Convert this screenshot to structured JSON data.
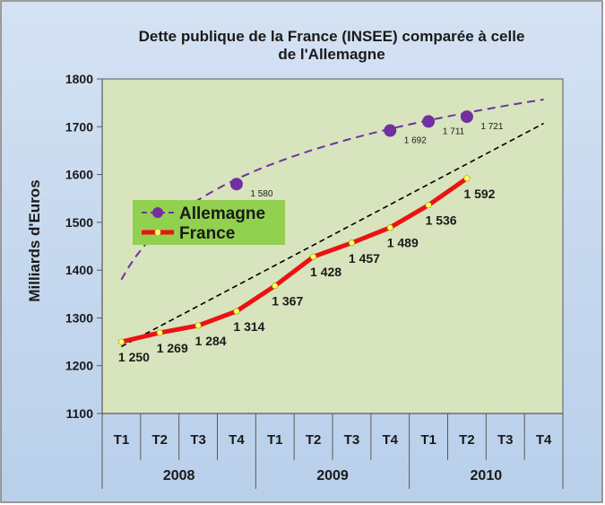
{
  "chart_data": {
    "type": "line",
    "title": "Dette publique de la France (INSEE) comparée à celle de l'Allemagne",
    "title_lines": [
      "Dette publique de la France (INSEE) comparée à celle",
      "de l'Allemagne"
    ],
    "ylabel": "Milliards d'Euros",
    "xlabel": "",
    "ylim": [
      1100,
      1800
    ],
    "yticks": [
      1100,
      1200,
      1300,
      1400,
      1500,
      1600,
      1700,
      1800
    ],
    "categories": [
      "T1",
      "T2",
      "T3",
      "T4",
      "T1",
      "T2",
      "T3",
      "T4",
      "T1",
      "T2",
      "T3",
      "T4"
    ],
    "years": [
      {
        "label": "2008",
        "quarters": 4
      },
      {
        "label": "2009",
        "quarters": 4
      },
      {
        "label": "2010",
        "quarters": 4
      }
    ],
    "series": [
      {
        "name": "France",
        "color": "#ee1111",
        "marker_color": "#ffff66",
        "values": [
          1250,
          1269,
          1284,
          1314,
          1367,
          1428,
          1457,
          1489,
          1536,
          1592,
          null,
          null
        ],
        "labels": [
          "1 250",
          "1 269",
          "1 284",
          "1 314",
          "1 367",
          "1 428",
          "1 457",
          "1 489",
          "1 536",
          "1 592",
          null,
          null
        ]
      },
      {
        "name": "Allemagne",
        "color": "#7030a0",
        "marker_color": "#7030a0",
        "values": [
          null,
          null,
          null,
          1580,
          null,
          null,
          null,
          1692,
          1711,
          1721,
          null,
          null
        ],
        "labels": [
          null,
          null,
          null,
          "1 580",
          null,
          null,
          null,
          "1 692",
          "1 711",
          "1 721",
          null,
          null
        ]
      }
    ],
    "trendlines": [
      {
        "for": "Allemagne",
        "style": "dashed",
        "color": "#7030a0",
        "curve": "logarithmic",
        "y_start": 1380,
        "y_end": 1757
      },
      {
        "for": "France",
        "style": "dashed",
        "color": "#000000",
        "curve": "linear",
        "y_start": 1240,
        "y_end": 1707
      }
    ],
    "legend": [
      {
        "label": "Allemagne",
        "series": "Allemagne"
      },
      {
        "label": "France",
        "series": "France"
      }
    ],
    "legend_position": "left-middle",
    "grid": false,
    "colors": {
      "chart_background": "#c5d8ef",
      "plot_background": "#d7e4bd",
      "legend_background": "#92d050",
      "frame_border": "#7f7f7f",
      "axis": "#595959"
    }
  }
}
